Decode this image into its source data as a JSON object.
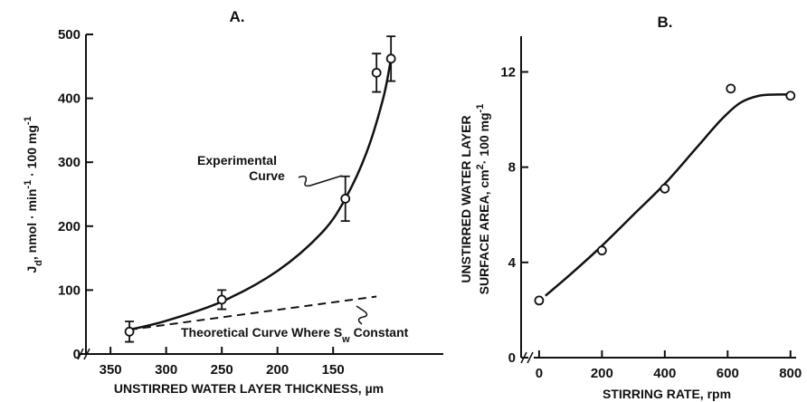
{
  "chart_data": [
    {
      "type": "scatter",
      "title": "A.",
      "xlabel": "UNSTIRRED WATER LAYER THICKNESS, µm",
      "ylabel": [
        "J",
        "d",
        ", nmol · min",
        "-1",
        " · 100 mg",
        "-1"
      ],
      "xlim": [
        368,
        51
      ],
      "ylim": [
        0,
        500
      ],
      "xticks": [
        350,
        300,
        250,
        200,
        150
      ],
      "yticks": [
        0,
        100,
        200,
        300,
        400,
        500
      ],
      "points": {
        "x": [
          333,
          250,
          139,
          111,
          98
        ],
        "values": [
          35,
          85,
          243,
          440,
          462
        ],
        "errors": [
          16,
          15,
          35,
          30,
          35
        ]
      },
      "curves": [
        {
          "dashed": false,
          "x": [
            333,
            300,
            250,
            200,
            160,
            139,
            120,
            105,
            98
          ],
          "values": [
            38,
            52,
            82,
            130,
            190,
            243,
            315,
            400,
            462
          ]
        },
        {
          "dashed": true,
          "x": [
            333,
            111
          ],
          "values": [
            38,
            90
          ]
        }
      ],
      "annotations": [
        [
          "Experimental",
          "Curve"
        ],
        [
          "Theoretical Curve Where S",
          "w",
          " Constant"
        ]
      ],
      "color": "#111"
    },
    {
      "type": "scatter",
      "title": "B.",
      "xlabel": "STIRRING RATE, rpm",
      "ylabel": [
        "UNSTIRRED WATER LAYER",
        "SURFACE AREA, cm",
        "2",
        "· 100 mg",
        "-1"
      ],
      "xlim": [
        -17,
        818
      ],
      "ylim": [
        0,
        13.5
      ],
      "xticks": [
        0,
        200,
        400,
        600,
        800
      ],
      "yticks": [
        0,
        4,
        8,
        12
      ],
      "points": {
        "x": [
          0,
          200,
          400,
          610,
          800
        ],
        "values": [
          2.4,
          4.5,
          7.1,
          11.3,
          11.0
        ]
      },
      "curves": [
        {
          "dashed": false,
          "x": [
            20,
            100,
            200,
            300,
            400,
            500,
            580,
            640,
            700,
            760,
            800
          ],
          "values": [
            2.6,
            3.5,
            4.7,
            6.0,
            7.3,
            8.8,
            10.0,
            10.7,
            11.0,
            11.05,
            11.05
          ]
        }
      ],
      "color": "#111"
    }
  ]
}
